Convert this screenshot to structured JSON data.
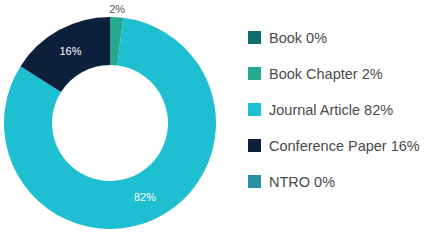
{
  "chart_data": {
    "type": "donut",
    "categories": [
      "Book",
      "Book Chapter",
      "Journal Article",
      "Conference Paper",
      "NTRO"
    ],
    "values": [
      0,
      2,
      82,
      16,
      0
    ],
    "value_labels": [
      "0%",
      "2%",
      "82%",
      "16%",
      "0%"
    ],
    "colors": [
      "#0f6b6e",
      "#24a98e",
      "#1dbfd0",
      "#0c1f3b",
      "#2b8fa3"
    ],
    "data_labels": true,
    "legend": "right"
  }
}
